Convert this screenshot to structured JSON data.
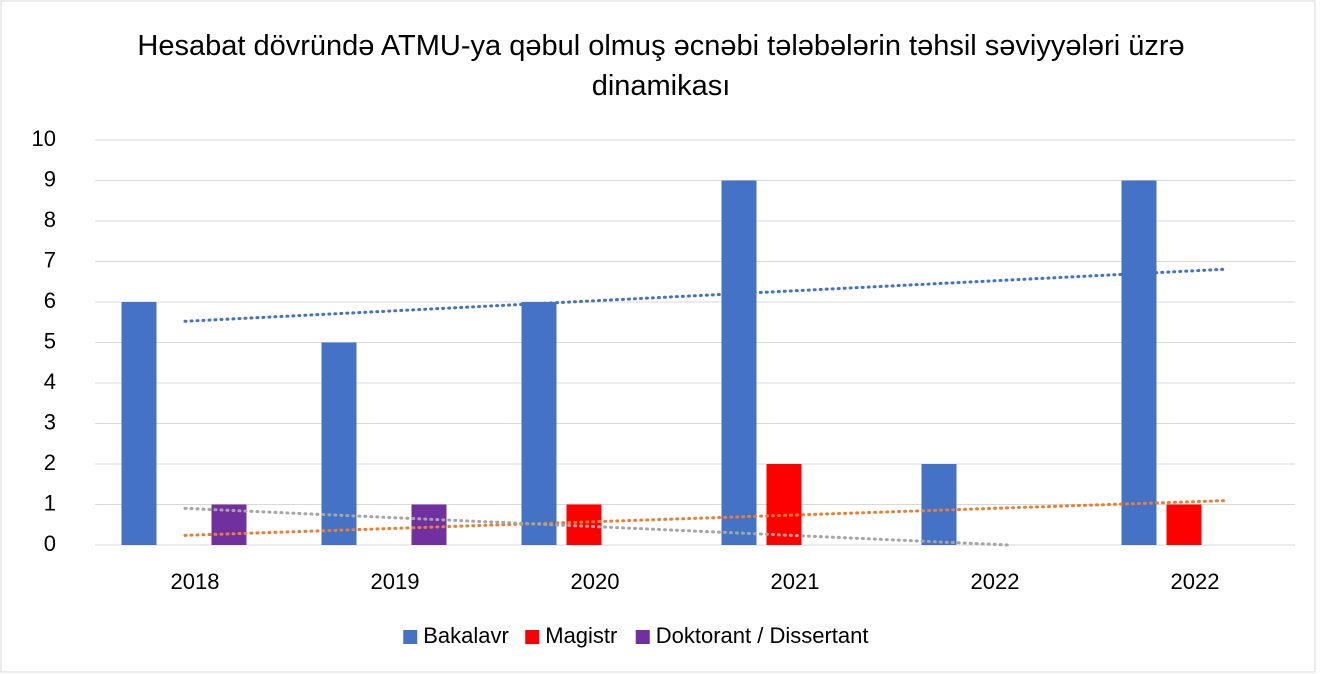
{
  "chart_data": {
    "type": "bar",
    "title": "Hesabat dövründə ATMU-ya qəbul olmuş əcnəbi tələbələrin təhsil səviyyələri üzrə dinamikası",
    "categories": [
      "2018",
      "2019",
      "2020",
      "2021",
      "2022",
      "2022"
    ],
    "series": [
      {
        "name": "Bakalavr",
        "color": "#4472c4",
        "trendline_color": "#4472c4",
        "values": [
          6,
          5,
          6,
          9,
          2,
          9
        ]
      },
      {
        "name": "Magistr",
        "color": "#ff0000",
        "trendline_color": "#ed7d31",
        "values": [
          0,
          0,
          1,
          2,
          0,
          1
        ]
      },
      {
        "name": "Doktorant / Dissertant",
        "color": "#7030a0",
        "trendline_color": "#a5a5a5",
        "values": [
          1,
          1,
          0,
          0,
          0,
          0
        ]
      }
    ],
    "trendline": "linear",
    "ylim": [
      0,
      10
    ],
    "yticks": [
      0,
      1,
      2,
      3,
      4,
      5,
      6,
      7,
      8,
      9,
      10
    ],
    "grid": true,
    "legend": "bottom"
  }
}
